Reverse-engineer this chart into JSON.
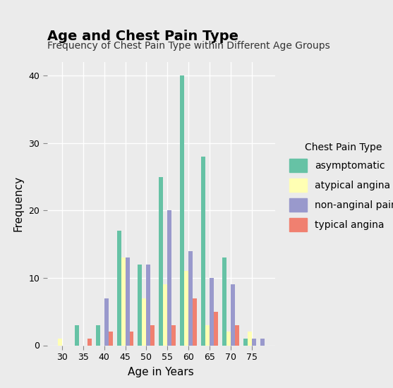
{
  "title": "Age and Chest Pain Type",
  "subtitle": "Frequency of Chest Pain Type within Different Age Groups",
  "xlabel": "Age in Years",
  "ylabel": "Frequency",
  "legend_title": "Chest Pain Type",
  "age_groups": [
    30,
    35,
    40,
    45,
    50,
    55,
    60,
    65,
    70,
    75,
    77
  ],
  "age_labels": [
    "30",
    "35",
    "40",
    "45",
    "50",
    "55",
    "60",
    "65",
    "70",
    "75",
    ""
  ],
  "xtick_positions": [
    30,
    35,
    40,
    45,
    50,
    55,
    60,
    65,
    70,
    75
  ],
  "xtick_labels": [
    "30",
    "35",
    "40",
    "45",
    "50",
    "55",
    "60",
    "65",
    "70",
    "75"
  ],
  "categories": [
    "asymptomatic",
    "atypical angina",
    "non-anginal pain",
    "typical angina"
  ],
  "colors": [
    "#66C2A5",
    "#FFFFB3",
    "#9999CC",
    "#F08070"
  ],
  "data": {
    "asymptomatic": [
      0,
      3,
      3,
      17,
      12,
      25,
      40,
      28,
      13,
      1,
      1
    ],
    "atypical angina": [
      1,
      0,
      0,
      13,
      7,
      9,
      11,
      3,
      2,
      2,
      0
    ],
    "non-anginal pain": [
      0,
      0,
      7,
      13,
      12,
      20,
      14,
      10,
      9,
      1,
      1
    ],
    "typical angina": [
      0,
      1,
      2,
      2,
      3,
      3,
      7,
      5,
      3,
      0,
      0
    ]
  },
  "ylim": [
    0,
    42
  ],
  "yticks": [
    0,
    10,
    20,
    30,
    40
  ],
  "bar_width": 1.0,
  "background_color": "#EBEBEB",
  "grid_color": "#FFFFFF",
  "title_fontsize": 14,
  "subtitle_fontsize": 10,
  "axis_label_fontsize": 11,
  "tick_fontsize": 9,
  "legend_fontsize": 10
}
